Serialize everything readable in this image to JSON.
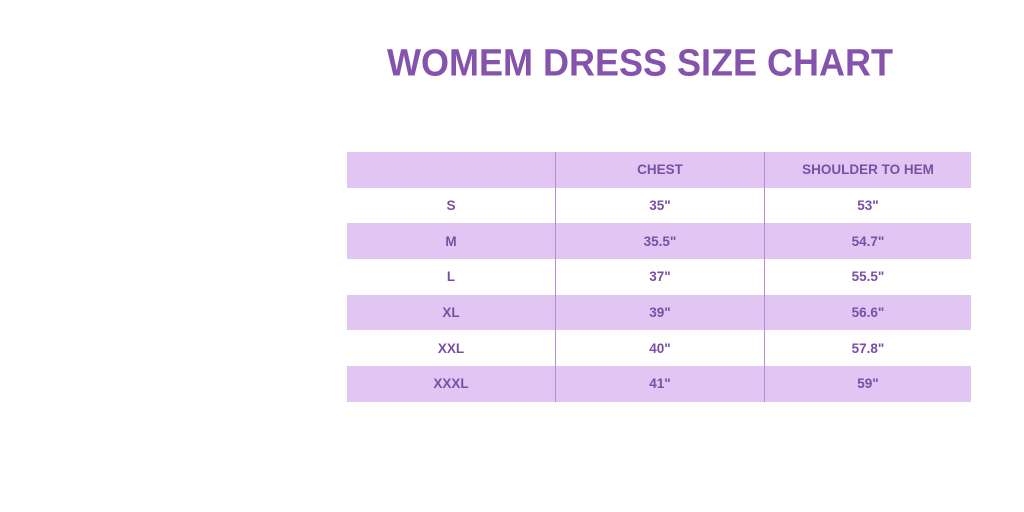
{
  "title": "WOMEM DRESS SIZE CHART",
  "colors": {
    "title": "#8553ad",
    "text": "#7a4fa3",
    "row_shade": "#e1c6f4"
  },
  "table": {
    "headers": [
      "",
      "CHEST",
      "SHOULDER TO HEM"
    ],
    "rows": [
      [
        "S",
        "35\"",
        "53\""
      ],
      [
        "M",
        "35.5\"",
        "54.7\""
      ],
      [
        "L",
        "37\"",
        "55.5\""
      ],
      [
        "XL",
        "39\"",
        "56.6\""
      ],
      [
        "XXL",
        "40\"",
        "57.8\""
      ],
      [
        "XXXL",
        "41\"",
        "59\""
      ]
    ]
  }
}
